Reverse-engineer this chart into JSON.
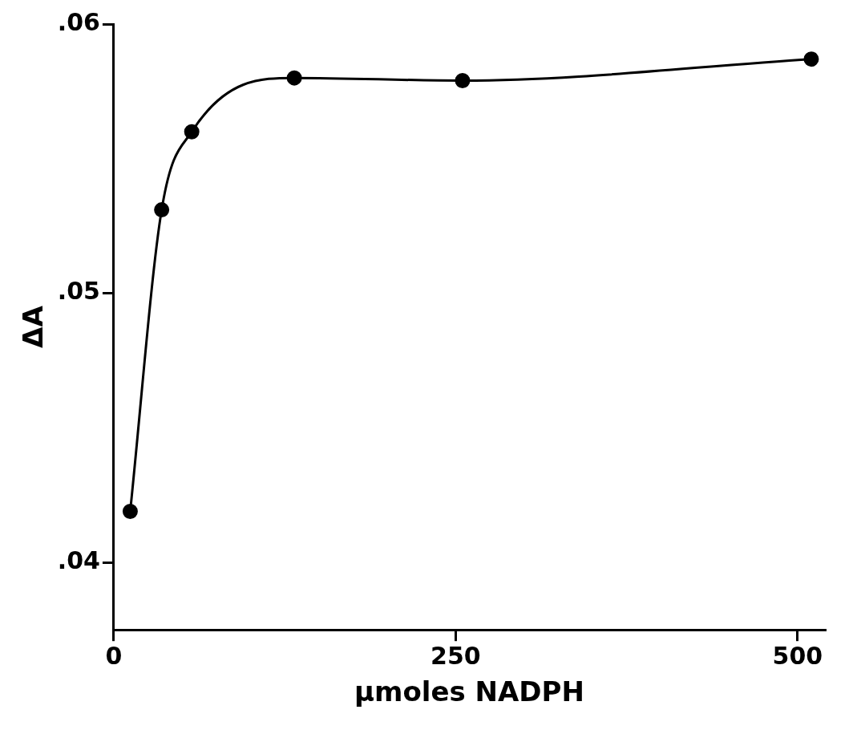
{
  "chart_data": {
    "type": "line",
    "xlabel": "μmoles NADPH",
    "ylabel": "ΔA",
    "x": [
      12,
      35,
      57,
      132,
      255,
      510
    ],
    "series": [
      {
        "color": "#000000",
        "values": [
          0.0419,
          0.0531,
          0.056,
          0.058,
          0.0579,
          0.0587
        ]
      }
    ],
    "xlim": [
      0,
      520
    ],
    "xticks": [
      0,
      250,
      500
    ],
    "ylim": [
      0.0375,
      0.06
    ],
    "yticks": [
      {
        "value": 0.04,
        "label": ".04"
      },
      {
        "value": 0.05,
        "label": ".05"
      },
      {
        "value": 0.06,
        "label": ".06"
      }
    ],
    "grid": false,
    "legend": false,
    "marker": "circle",
    "line_style": "solid"
  }
}
